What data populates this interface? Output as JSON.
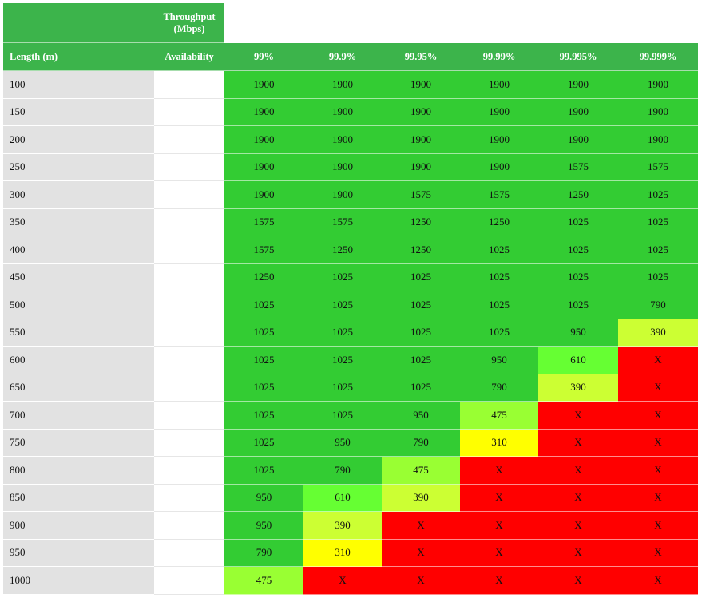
{
  "table": {
    "corner_header": "Throughput (Mbps)",
    "row_header_label": "Length (m)",
    "availability_label": "Availability",
    "columns": [
      "99%",
      "99.9%",
      "99.95%",
      "99.99%",
      "99.995%",
      "99.999%"
    ],
    "rows": [
      {
        "length": 100,
        "cells": [
          1900,
          1900,
          1900,
          1900,
          1900,
          1900
        ],
        "colors": [
          "#33cc33",
          "#33cc33",
          "#33cc33",
          "#33cc33",
          "#33cc33",
          "#33cc33"
        ]
      },
      {
        "length": 150,
        "cells": [
          1900,
          1900,
          1900,
          1900,
          1900,
          1900
        ],
        "colors": [
          "#33cc33",
          "#33cc33",
          "#33cc33",
          "#33cc33",
          "#33cc33",
          "#33cc33"
        ]
      },
      {
        "length": 200,
        "cells": [
          1900,
          1900,
          1900,
          1900,
          1900,
          1900
        ],
        "colors": [
          "#33cc33",
          "#33cc33",
          "#33cc33",
          "#33cc33",
          "#33cc33",
          "#33cc33"
        ]
      },
      {
        "length": 250,
        "cells": [
          1900,
          1900,
          1900,
          1900,
          1575,
          1575
        ],
        "colors": [
          "#33cc33",
          "#33cc33",
          "#33cc33",
          "#33cc33",
          "#33cc33",
          "#33cc33"
        ]
      },
      {
        "length": 300,
        "cells": [
          1900,
          1900,
          1575,
          1575,
          1250,
          1025
        ],
        "colors": [
          "#33cc33",
          "#33cc33",
          "#33cc33",
          "#33cc33",
          "#33cc33",
          "#33cc33"
        ]
      },
      {
        "length": 350,
        "cells": [
          1575,
          1575,
          1250,
          1250,
          1025,
          1025
        ],
        "colors": [
          "#33cc33",
          "#33cc33",
          "#33cc33",
          "#33cc33",
          "#33cc33",
          "#33cc33"
        ]
      },
      {
        "length": 400,
        "cells": [
          1575,
          1250,
          1250,
          1025,
          1025,
          1025
        ],
        "colors": [
          "#33cc33",
          "#33cc33",
          "#33cc33",
          "#33cc33",
          "#33cc33",
          "#33cc33"
        ]
      },
      {
        "length": 450,
        "cells": [
          1250,
          1025,
          1025,
          1025,
          1025,
          1025
        ],
        "colors": [
          "#33cc33",
          "#33cc33",
          "#33cc33",
          "#33cc33",
          "#33cc33",
          "#33cc33"
        ]
      },
      {
        "length": 500,
        "cells": [
          1025,
          1025,
          1025,
          1025,
          1025,
          790
        ],
        "colors": [
          "#33cc33",
          "#33cc33",
          "#33cc33",
          "#33cc33",
          "#33cc33",
          "#33cc33"
        ]
      },
      {
        "length": 550,
        "cells": [
          1025,
          1025,
          1025,
          1025,
          950,
          390
        ],
        "colors": [
          "#33cc33",
          "#33cc33",
          "#33cc33",
          "#33cc33",
          "#33cc33",
          "#ccff33"
        ]
      },
      {
        "length": 600,
        "cells": [
          1025,
          1025,
          1025,
          950,
          610,
          "X"
        ],
        "colors": [
          "#33cc33",
          "#33cc33",
          "#33cc33",
          "#33cc33",
          "#66ff33",
          "#ff0000"
        ]
      },
      {
        "length": 650,
        "cells": [
          1025,
          1025,
          1025,
          790,
          390,
          "X"
        ],
        "colors": [
          "#33cc33",
          "#33cc33",
          "#33cc33",
          "#33cc33",
          "#ccff33",
          "#ff0000"
        ]
      },
      {
        "length": 700,
        "cells": [
          1025,
          1025,
          950,
          475,
          "X",
          "X"
        ],
        "colors": [
          "#33cc33",
          "#33cc33",
          "#33cc33",
          "#99ff33",
          "#ff0000",
          "#ff0000"
        ]
      },
      {
        "length": 750,
        "cells": [
          1025,
          950,
          790,
          310,
          "X",
          "X"
        ],
        "colors": [
          "#33cc33",
          "#33cc33",
          "#33cc33",
          "#ffff00",
          "#ff0000",
          "#ff0000"
        ]
      },
      {
        "length": 800,
        "cells": [
          1025,
          790,
          475,
          "X",
          "X",
          "X"
        ],
        "colors": [
          "#33cc33",
          "#33cc33",
          "#99ff33",
          "#ff0000",
          "#ff0000",
          "#ff0000"
        ]
      },
      {
        "length": 850,
        "cells": [
          950,
          610,
          390,
          "X",
          "X",
          "X"
        ],
        "colors": [
          "#33cc33",
          "#66ff33",
          "#ccff33",
          "#ff0000",
          "#ff0000",
          "#ff0000"
        ]
      },
      {
        "length": 900,
        "cells": [
          950,
          390,
          "X",
          "X",
          "X",
          "X"
        ],
        "colors": [
          "#33cc33",
          "#ccff33",
          "#ff0000",
          "#ff0000",
          "#ff0000",
          "#ff0000"
        ]
      },
      {
        "length": 950,
        "cells": [
          790,
          310,
          "X",
          "X",
          "X",
          "X"
        ],
        "colors": [
          "#33cc33",
          "#ffff00",
          "#ff0000",
          "#ff0000",
          "#ff0000",
          "#ff0000"
        ]
      },
      {
        "length": 1000,
        "cells": [
          475,
          "X",
          "X",
          "X",
          "X",
          "X"
        ],
        "colors": [
          "#99ff33",
          "#ff0000",
          "#ff0000",
          "#ff0000",
          "#ff0000",
          "#ff0000"
        ]
      }
    ]
  }
}
